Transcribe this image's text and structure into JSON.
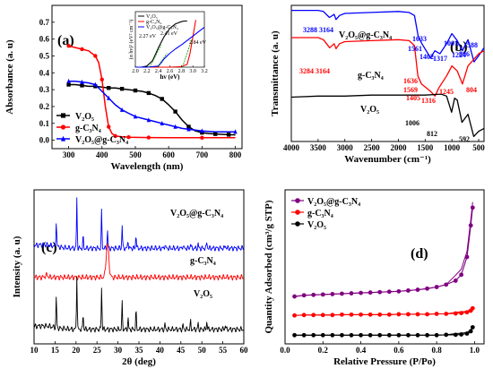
{
  "chart_data": [
    {
      "id": "a",
      "type": "line",
      "panel_label": "(a)",
      "xlabel": "Wavelength (nm)",
      "ylabel": "Absorbance (a. u)",
      "xlim": [
        250,
        820
      ],
      "ylim": [
        -0.05,
        0.8
      ],
      "xticks": [
        300,
        400,
        500,
        600,
        700,
        800
      ],
      "yticks": [
        0.0,
        0.1,
        0.2,
        0.3,
        0.4,
        0.5,
        0.6,
        0.7
      ],
      "legend_position": "bottom-left",
      "series": [
        {
          "name": "V₂O₅",
          "color": "#000000",
          "marker": "square",
          "x": [
            300,
            320,
            340,
            360,
            380,
            400,
            420,
            440,
            460,
            480,
            500,
            520,
            540,
            560,
            580,
            600,
            620,
            640,
            660,
            680,
            700,
            720,
            740,
            760,
            780,
            800
          ],
          "y": [
            0.33,
            0.33,
            0.325,
            0.32,
            0.32,
            0.315,
            0.31,
            0.31,
            0.305,
            0.3,
            0.295,
            0.29,
            0.28,
            0.265,
            0.245,
            0.21,
            0.17,
            0.12,
            0.08,
            0.055,
            0.045,
            0.04,
            0.037,
            0.035,
            0.033,
            0.032
          ]
        },
        {
          "name": "g-C₃N₄",
          "color": "#ff0000",
          "marker": "circle",
          "x": [
            300,
            320,
            340,
            360,
            380,
            390,
            400,
            410,
            420,
            430,
            440,
            460,
            480,
            500,
            540,
            600,
            700,
            800
          ],
          "y": [
            0.56,
            0.55,
            0.54,
            0.53,
            0.5,
            0.46,
            0.36,
            0.2,
            0.08,
            0.04,
            0.025,
            0.02,
            0.018,
            0.017,
            0.016,
            0.015,
            0.015,
            0.015
          ]
        },
        {
          "name": "V₂O₅@g-C₃N₄",
          "color": "#0000ff",
          "marker": "triangle",
          "x": [
            300,
            320,
            340,
            360,
            380,
            400,
            420,
            440,
            460,
            480,
            500,
            520,
            540,
            560,
            580,
            600,
            620,
            640,
            660,
            680,
            700,
            740,
            800
          ],
          "y": [
            0.35,
            0.35,
            0.345,
            0.34,
            0.33,
            0.29,
            0.25,
            0.21,
            0.18,
            0.16,
            0.14,
            0.13,
            0.12,
            0.11,
            0.1,
            0.09,
            0.08,
            0.07,
            0.065,
            0.06,
            0.055,
            0.05,
            0.05
          ]
        }
      ],
      "inset": {
        "xlabel": "hv (eV)",
        "ylabel": "(α hv)² (eV² cm⁻²)",
        "xlim": [
          2.0,
          3.2
        ],
        "ylim": [
          0,
          1
        ],
        "xticks": [
          "2.0",
          "2.2",
          "2.4",
          "2.6",
          "2.8",
          "3.0",
          "3.2"
        ],
        "legend": [
          "V₂O₅",
          "g-C₃N₄",
          "V₂O₅@g-C₃N₄"
        ],
        "annotations": [
          {
            "text": "2.27 eV",
            "color": "#000000"
          },
          {
            "text": "2.41 eV",
            "color": "#000000"
          },
          {
            "text": "2.84 eV",
            "color": "#000000"
          }
        ],
        "series": [
          {
            "name": "V₂O₅",
            "color": "#000000",
            "x": [
              2.0,
              2.1,
              2.2,
              2.3,
              2.4,
              2.5,
              2.6,
              2.7,
              2.8,
              2.85,
              2.9
            ],
            "y": [
              0,
              0,
              0.02,
              0.12,
              0.35,
              0.55,
              0.7,
              0.78,
              0.82,
              0.83,
              0.83
            ]
          },
          {
            "name": "g-C₃N₄",
            "color": "#ff0000",
            "x": [
              2.0,
              2.4,
              2.6,
              2.8,
              2.9,
              2.95,
              3.0,
              3.05
            ],
            "y": [
              0,
              0,
              0,
              0.01,
              0.05,
              0.25,
              0.55,
              0.85
            ]
          },
          {
            "name": "V₂O₅@g-C₃N₄",
            "color": "#0000ff",
            "x": [
              2.0,
              2.2,
              2.4,
              2.45,
              2.5,
              2.6,
              2.7,
              2.8,
              2.9,
              3.0,
              3.1,
              3.2
            ],
            "y": [
              0,
              0,
              0.02,
              0.08,
              0.15,
              0.25,
              0.33,
              0.4,
              0.48,
              0.56,
              0.64,
              0.72
            ]
          }
        ]
      }
    },
    {
      "id": "b",
      "type": "line",
      "panel_label": "(b)",
      "xlabel": "Wavenumber (cm⁻¹)",
      "ylabel": "Transmittance (a. u)",
      "xlim": [
        4000,
        400
      ],
      "xticks": [
        4000,
        3500,
        3000,
        2500,
        2000,
        1500,
        1000,
        500
      ],
      "series": [
        {
          "name": "V₂O₅@g-C₃N₄",
          "color": "#0000ff",
          "x": [
            4000,
            3500,
            3400,
            3288,
            3200,
            3164,
            3100,
            3000,
            2500,
            2000,
            1800,
            1700,
            1633,
            1560,
            1402,
            1317,
            1224,
            1100,
            1001,
            900,
            806,
            700,
            588,
            500,
            400
          ],
          "y": [
            95,
            95,
            94,
            88,
            91,
            86,
            90,
            92,
            93,
            94,
            93,
            90,
            70,
            62,
            48,
            55,
            52,
            62,
            72,
            65,
            55,
            66,
            44,
            50,
            58
          ]
        },
        {
          "name": "g-C₃N₄",
          "color": "#ff0000",
          "x": [
            4000,
            3500,
            3400,
            3284,
            3200,
            3164,
            3100,
            3000,
            2500,
            2000,
            1800,
            1700,
            1636,
            1569,
            1405,
            1316,
            1245,
            1100,
            1000,
            900,
            804,
            700,
            600,
            500,
            400
          ],
          "y": [
            68,
            68,
            66,
            58,
            62,
            57,
            62,
            64,
            65,
            66,
            65,
            60,
            30,
            22,
            15,
            10,
            18,
            30,
            40,
            35,
            22,
            40,
            46,
            52,
            55
          ]
        },
        {
          "name": "V₂O₅",
          "color": "#000000",
          "x": [
            4000,
            3500,
            3000,
            2500,
            2000,
            1500,
            1200,
            1100,
            1006,
            950,
            900,
            812,
            700,
            592,
            500,
            400
          ],
          "y": [
            9,
            10,
            10,
            11,
            11,
            11,
            12,
            10,
            -6,
            8,
            6,
            -16,
            -8,
            -30,
            -25,
            -22
          ]
        }
      ],
      "labels": [
        {
          "text": "V₂O₅@g-C₃N₄",
          "color": "#000000"
        },
        {
          "text": "g-C₃N₄",
          "color": "#000000"
        },
        {
          "text": "V₂O₅",
          "color": "#000000"
        }
      ],
      "peak_labels": [
        {
          "text": "3288",
          "color": "#0000ff"
        },
        {
          "text": "3164",
          "color": "#0000ff"
        },
        {
          "text": "1633",
          "color": "#0000ff"
        },
        {
          "text": "1561",
          "color": "#0000ff"
        },
        {
          "text": "1402",
          "color": "#0000ff"
        },
        {
          "text": "1317",
          "color": "#0000ff"
        },
        {
          "text": "1224",
          "color": "#0000ff"
        },
        {
          "text": "1001",
          "color": "#0000ff"
        },
        {
          "text": "806",
          "color": "#0000ff"
        },
        {
          "text": "588",
          "color": "#0000ff"
        },
        {
          "text": "3284",
          "color": "#ff0000"
        },
        {
          "text": "3164",
          "color": "#ff0000"
        },
        {
          "text": "1636",
          "color": "#ff0000"
        },
        {
          "text": "1569",
          "color": "#ff0000"
        },
        {
          "text": "1405",
          "color": "#ff0000"
        },
        {
          "text": "1316",
          "color": "#ff0000"
        },
        {
          "text": "1245",
          "color": "#ff0000"
        },
        {
          "text": "804",
          "color": "#ff0000"
        },
        {
          "text": "1006",
          "color": "#000000"
        },
        {
          "text": "812",
          "color": "#000000"
        },
        {
          "text": "592",
          "color": "#000000"
        }
      ]
    },
    {
      "id": "c",
      "type": "line",
      "panel_label": "(c)",
      "xlabel": "2θ (deg)",
      "ylabel": "Intensity (a. u)",
      "xlim": [
        10,
        60
      ],
      "xticks": [
        10,
        15,
        20,
        25,
        30,
        35,
        40,
        45,
        50,
        55,
        60
      ],
      "series": [
        {
          "name": "V₂O₅@g-C₃N₄",
          "color": "#0000ff",
          "base": 3290,
          "peaks": [
            [
              15.3,
              900
            ],
            [
              20.2,
              1700
            ],
            [
              21.7,
              400
            ],
            [
              26.1,
              1300
            ],
            [
              27.5,
              600
            ],
            [
              31.0,
              800
            ],
            [
              32.4,
              300
            ],
            [
              34.3,
              500
            ],
            [
              41.2,
              150
            ],
            [
              45.5,
              120
            ],
            [
              47.3,
              180
            ],
            [
              49.1,
              150
            ],
            [
              51.2,
              220
            ],
            [
              55.6,
              120
            ]
          ]
        },
        {
          "name": "g-C₃N₄",
          "color": "#ff0000",
          "base": 2290,
          "peaks": [
            [
              13.0,
              80
            ],
            [
              27.5,
              1150
            ]
          ]
        },
        {
          "name": "V₂O₅",
          "color": "#000000",
          "base": 500,
          "peaks": [
            [
              15.3,
              1050
            ],
            [
              20.2,
              1900
            ],
            [
              21.7,
              550
            ],
            [
              26.1,
              1500
            ],
            [
              31.0,
              900
            ],
            [
              32.4,
              400
            ],
            [
              34.3,
              650
            ],
            [
              41.2,
              180
            ],
            [
              45.5,
              150
            ],
            [
              47.3,
              260
            ],
            [
              49.1,
              200
            ],
            [
              51.2,
              300
            ],
            [
              55.6,
              160
            ]
          ]
        }
      ],
      "labels": [
        {
          "text": "V₂O₅@g-C₃N₄"
        },
        {
          "text": "g-C₃N₄"
        },
        {
          "text": "V₂O₅"
        }
      ]
    },
    {
      "id": "d",
      "type": "line",
      "panel_label": "(d)",
      "xlabel": "Relative Pressure (P/Po)",
      "ylabel": "Quantity Adsorbed (cm³/g STP)",
      "xlim": [
        0,
        1.05
      ],
      "xticks": [
        "0.0",
        "0.2",
        "0.4",
        "0.6",
        "0.8",
        "1.0"
      ],
      "legend_position": "top-left",
      "series": [
        {
          "name": "V₂O₅@g-C₃N₄",
          "color": "#800080",
          "marker": "circle",
          "x": [
            0.05,
            0.1,
            0.15,
            0.2,
            0.25,
            0.3,
            0.35,
            0.4,
            0.45,
            0.5,
            0.55,
            0.6,
            0.65,
            0.7,
            0.75,
            0.8,
            0.85,
            0.9,
            0.93,
            0.96,
            0.98,
            0.99
          ],
          "y": [
            100,
            103,
            104,
            105,
            106,
            107,
            108,
            109,
            110,
            111,
            112,
            113,
            115,
            117,
            120,
            124,
            130,
            140,
            155,
            200,
            280,
            325
          ]
        },
        {
          "name": "g-C₃N₄",
          "color": "#ff0000",
          "marker": "circle",
          "x": [
            0.05,
            0.1,
            0.15,
            0.2,
            0.25,
            0.3,
            0.35,
            0.4,
            0.45,
            0.5,
            0.55,
            0.6,
            0.65,
            0.7,
            0.75,
            0.8,
            0.85,
            0.9,
            0.93,
            0.96,
            0.98,
            0.99
          ],
          "y": [
            52,
            53,
            53,
            53,
            53,
            54,
            54,
            54,
            54,
            54,
            54,
            55,
            55,
            55,
            55,
            56,
            56,
            57,
            58,
            60,
            64,
            70
          ]
        },
        {
          "name": "V₂O₅",
          "color": "#000000",
          "marker": "circle",
          "x": [
            0.05,
            0.1,
            0.15,
            0.2,
            0.25,
            0.3,
            0.35,
            0.4,
            0.45,
            0.5,
            0.55,
            0.6,
            0.65,
            0.7,
            0.75,
            0.8,
            0.85,
            0.9,
            0.93,
            0.96,
            0.98,
            0.99
          ],
          "y": [
            2,
            2,
            2,
            2,
            2,
            2,
            2,
            2,
            2,
            2,
            2,
            2,
            2,
            2,
            2,
            2,
            3,
            3,
            4,
            6,
            12,
            22
          ]
        }
      ]
    }
  ]
}
